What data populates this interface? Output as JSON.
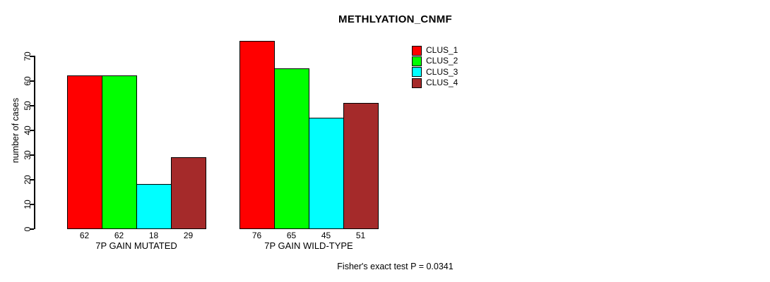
{
  "chart_data": {
    "type": "bar",
    "title": "METHLYATION_CNMF",
    "ylabel": "number of cases",
    "xlabel": "",
    "footer": "Fisher's exact test P = 0.0341",
    "categories": [
      "7P GAIN MUTATED",
      "7P GAIN WILD-TYPE"
    ],
    "series": [
      {
        "name": "CLUS_1",
        "color": "#ff0000",
        "values": [
          62,
          76
        ]
      },
      {
        "name": "CLUS_2",
        "color": "#00ff00",
        "values": [
          62,
          65
        ]
      },
      {
        "name": "CLUS_3",
        "color": "#00ffff",
        "values": [
          18,
          45
        ]
      },
      {
        "name": "CLUS_4",
        "color": "#a52a2a",
        "values": [
          29,
          51
        ]
      }
    ],
    "bar_value_labels": [
      [
        "62",
        "62",
        "18",
        "29"
      ],
      [
        "76",
        "65",
        "45",
        "51"
      ]
    ],
    "yticks": [
      0,
      10,
      20,
      30,
      40,
      50,
      60,
      70
    ],
    "ylim": [
      0,
      70
    ],
    "grid": false,
    "legend_position": "top-right",
    "background": "#ffffff",
    "axis_color": "#000000"
  }
}
